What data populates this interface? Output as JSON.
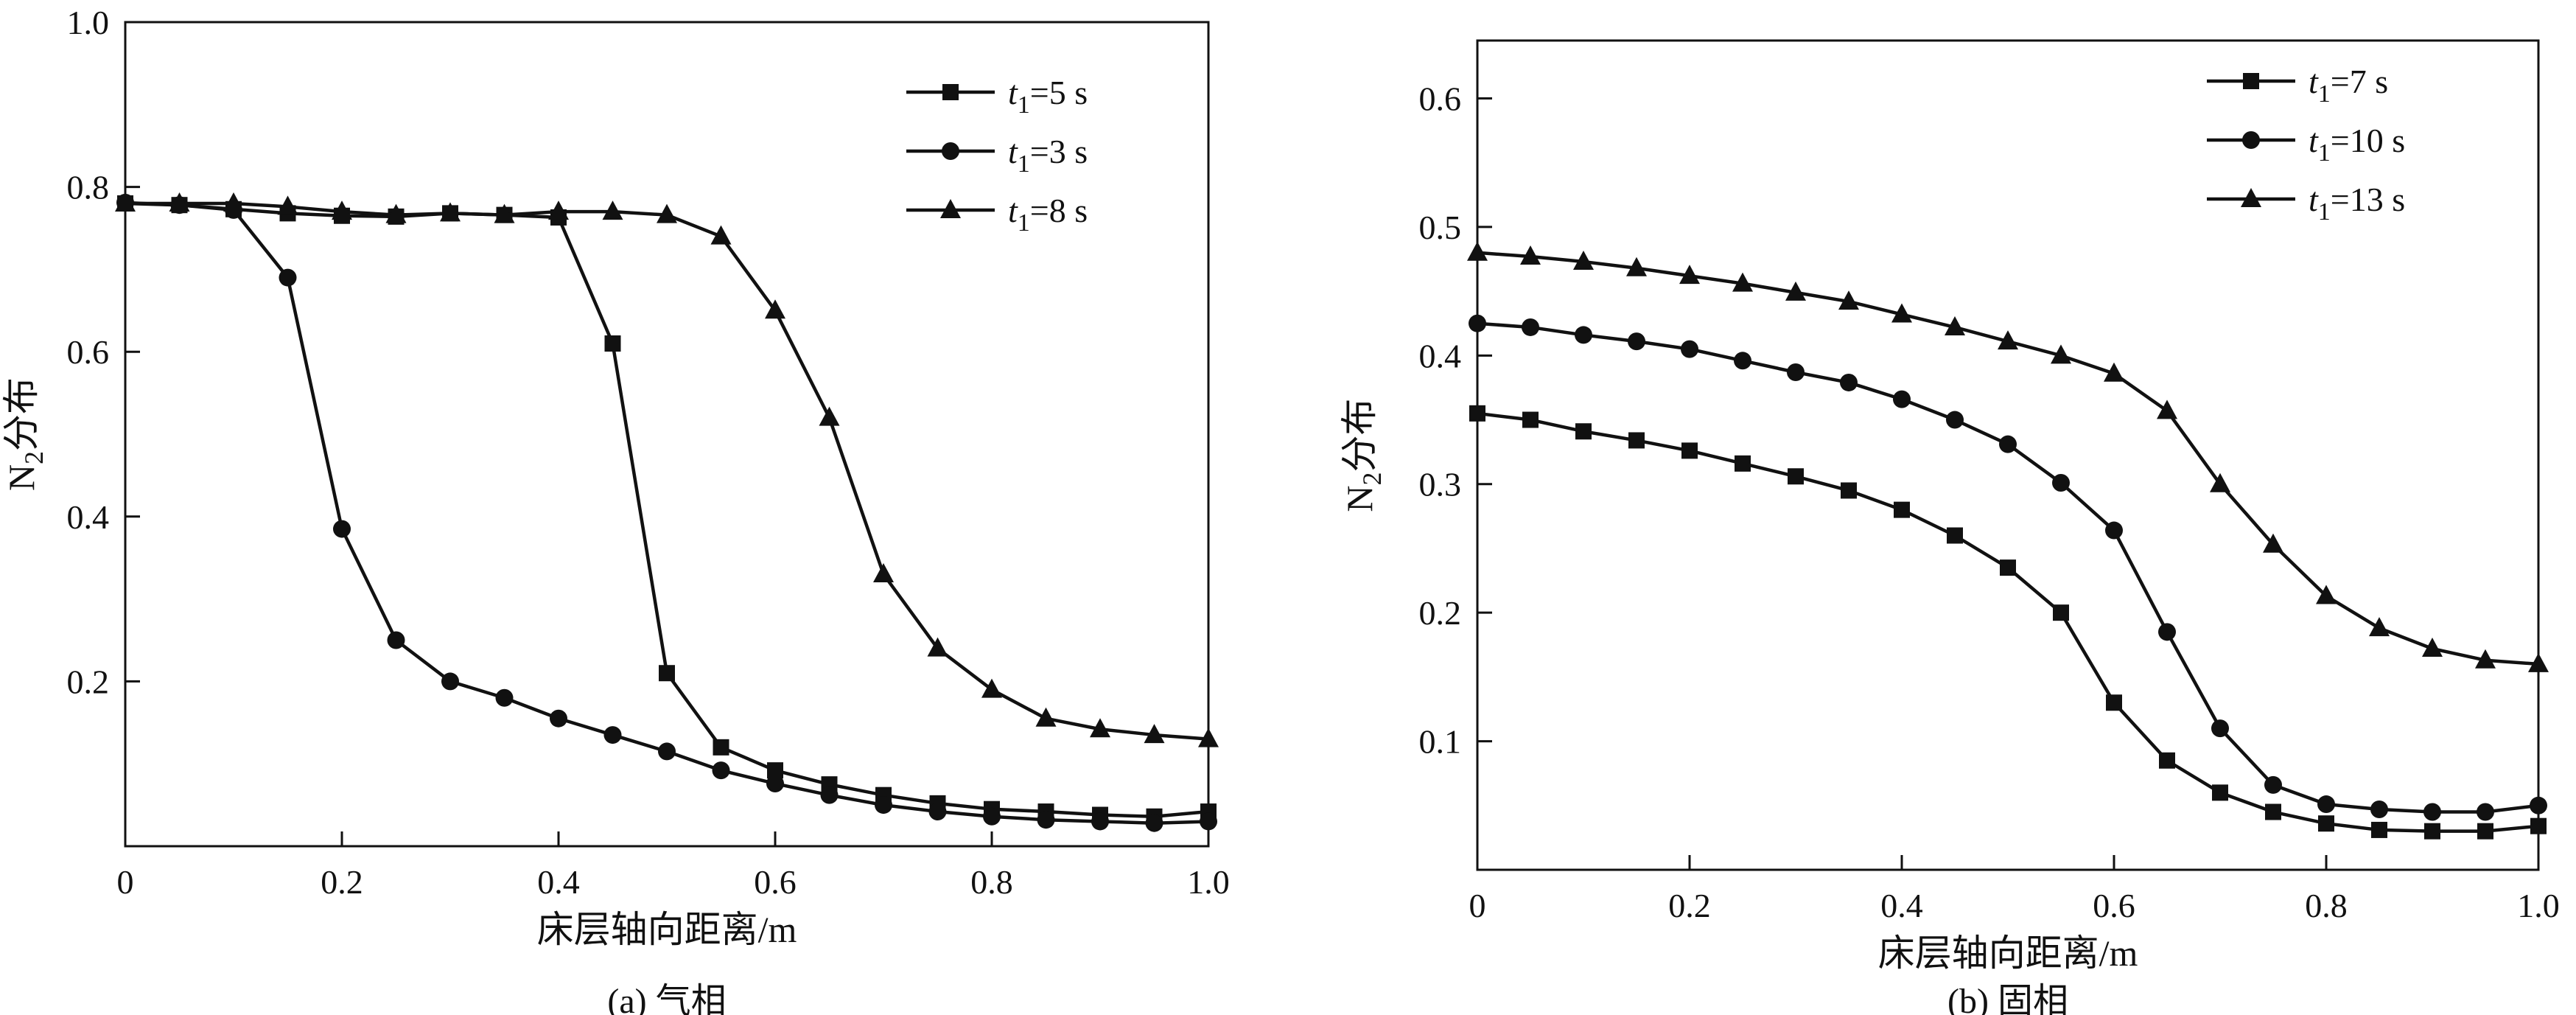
{
  "style": {
    "line_color": "#111111",
    "background": "#ffffff"
  },
  "chart_data": [
    {
      "type": "line",
      "caption": "(a) 气相",
      "xlabel": "床层轴向距离/m",
      "ylabel": {
        "pre": "N",
        "sub": "2",
        "post": "分布"
      },
      "xlim": [
        0,
        1.0
      ],
      "ylim": [
        0,
        1.0
      ],
      "xticks": [
        0,
        0.2,
        0.4,
        0.6,
        0.8,
        1.0
      ],
      "xtick_labels": [
        "0",
        "0.2",
        "0.4",
        "0.6",
        "0.8",
        "1.0"
      ],
      "yticks": [
        0.2,
        0.4,
        0.6,
        0.8,
        1.0
      ],
      "ytick_labels": [
        "0.2",
        "0.4",
        "0.6",
        "0.8",
        "1.0"
      ],
      "legend_position": "top-right",
      "grid": false,
      "x": [
        0,
        0.05,
        0.1,
        0.15,
        0.2,
        0.25,
        0.3,
        0.35,
        0.4,
        0.45,
        0.5,
        0.55,
        0.6,
        0.65,
        0.7,
        0.75,
        0.8,
        0.85,
        0.9,
        0.95,
        1.0
      ],
      "series": [
        {
          "marker": "square",
          "legend": {
            "var": "t",
            "sub": "1",
            "rest": "=5 s"
          },
          "y": [
            0.78,
            0.778,
            0.773,
            0.768,
            0.765,
            0.764,
            0.768,
            0.766,
            0.763,
            0.61,
            0.21,
            0.12,
            0.092,
            0.075,
            0.062,
            0.052,
            0.045,
            0.042,
            0.038,
            0.036,
            0.042
          ]
        },
        {
          "marker": "circle",
          "legend": {
            "var": "t",
            "sub": "1",
            "rest": "=3 s"
          },
          "y": [
            0.781,
            0.778,
            0.772,
            0.69,
            0.385,
            0.25,
            0.2,
            0.18,
            0.155,
            0.135,
            0.115,
            0.092,
            0.076,
            0.062,
            0.05,
            0.042,
            0.036,
            0.032,
            0.03,
            0.028,
            0.03
          ]
        },
        {
          "marker": "triangle",
          "legend": {
            "var": "t",
            "sub": "1",
            "rest": "=8 s"
          },
          "y": [
            0.78,
            0.78,
            0.78,
            0.776,
            0.77,
            0.766,
            0.768,
            0.766,
            0.77,
            0.77,
            0.766,
            0.74,
            0.65,
            0.52,
            0.33,
            0.24,
            0.19,
            0.155,
            0.142,
            0.135,
            0.13
          ]
        }
      ]
    },
    {
      "type": "line",
      "caption": "(b) 固相",
      "xlabel": "床层轴向距离/m",
      "ylabel": {
        "pre": "N",
        "sub": "2",
        "post": "分布"
      },
      "xlim": [
        0,
        1.0
      ],
      "ylim": [
        0,
        0.645
      ],
      "xticks": [
        0,
        0.2,
        0.4,
        0.6,
        0.8,
        1.0
      ],
      "xtick_labels": [
        "0",
        "0.2",
        "0.4",
        "0.6",
        "0.8",
        "1.0"
      ],
      "yticks": [
        0.1,
        0.2,
        0.3,
        0.4,
        0.5,
        0.6
      ],
      "ytick_labels": [
        "0.1",
        "0.2",
        "0.3",
        "0.4",
        "0.5",
        "0.6"
      ],
      "legend_position": "top-right",
      "grid": false,
      "x": [
        0,
        0.05,
        0.1,
        0.15,
        0.2,
        0.25,
        0.3,
        0.35,
        0.4,
        0.45,
        0.5,
        0.55,
        0.6,
        0.65,
        0.7,
        0.75,
        0.8,
        0.85,
        0.9,
        0.95,
        1.0
      ],
      "series": [
        {
          "marker": "square",
          "legend": {
            "var": "t",
            "sub": "1",
            "rest": "=7 s"
          },
          "y": [
            0.355,
            0.35,
            0.341,
            0.334,
            0.326,
            0.316,
            0.306,
            0.295,
            0.28,
            0.26,
            0.235,
            0.2,
            0.13,
            0.085,
            0.06,
            0.045,
            0.036,
            0.031,
            0.03,
            0.03,
            0.034
          ]
        },
        {
          "marker": "circle",
          "legend": {
            "var": "t",
            "sub": "1",
            "rest": "=10 s"
          },
          "y": [
            0.425,
            0.422,
            0.416,
            0.411,
            0.405,
            0.396,
            0.387,
            0.379,
            0.366,
            0.35,
            0.331,
            0.301,
            0.264,
            0.185,
            0.11,
            0.066,
            0.051,
            0.047,
            0.045,
            0.045,
            0.05
          ]
        },
        {
          "marker": "triangle",
          "legend": {
            "var": "t",
            "sub": "1",
            "rest": "=13 s"
          },
          "y": [
            0.48,
            0.477,
            0.473,
            0.468,
            0.462,
            0.456,
            0.449,
            0.442,
            0.432,
            0.422,
            0.411,
            0.4,
            0.386,
            0.357,
            0.3,
            0.253,
            0.213,
            0.188,
            0.172,
            0.163,
            0.16
          ]
        }
      ]
    }
  ]
}
